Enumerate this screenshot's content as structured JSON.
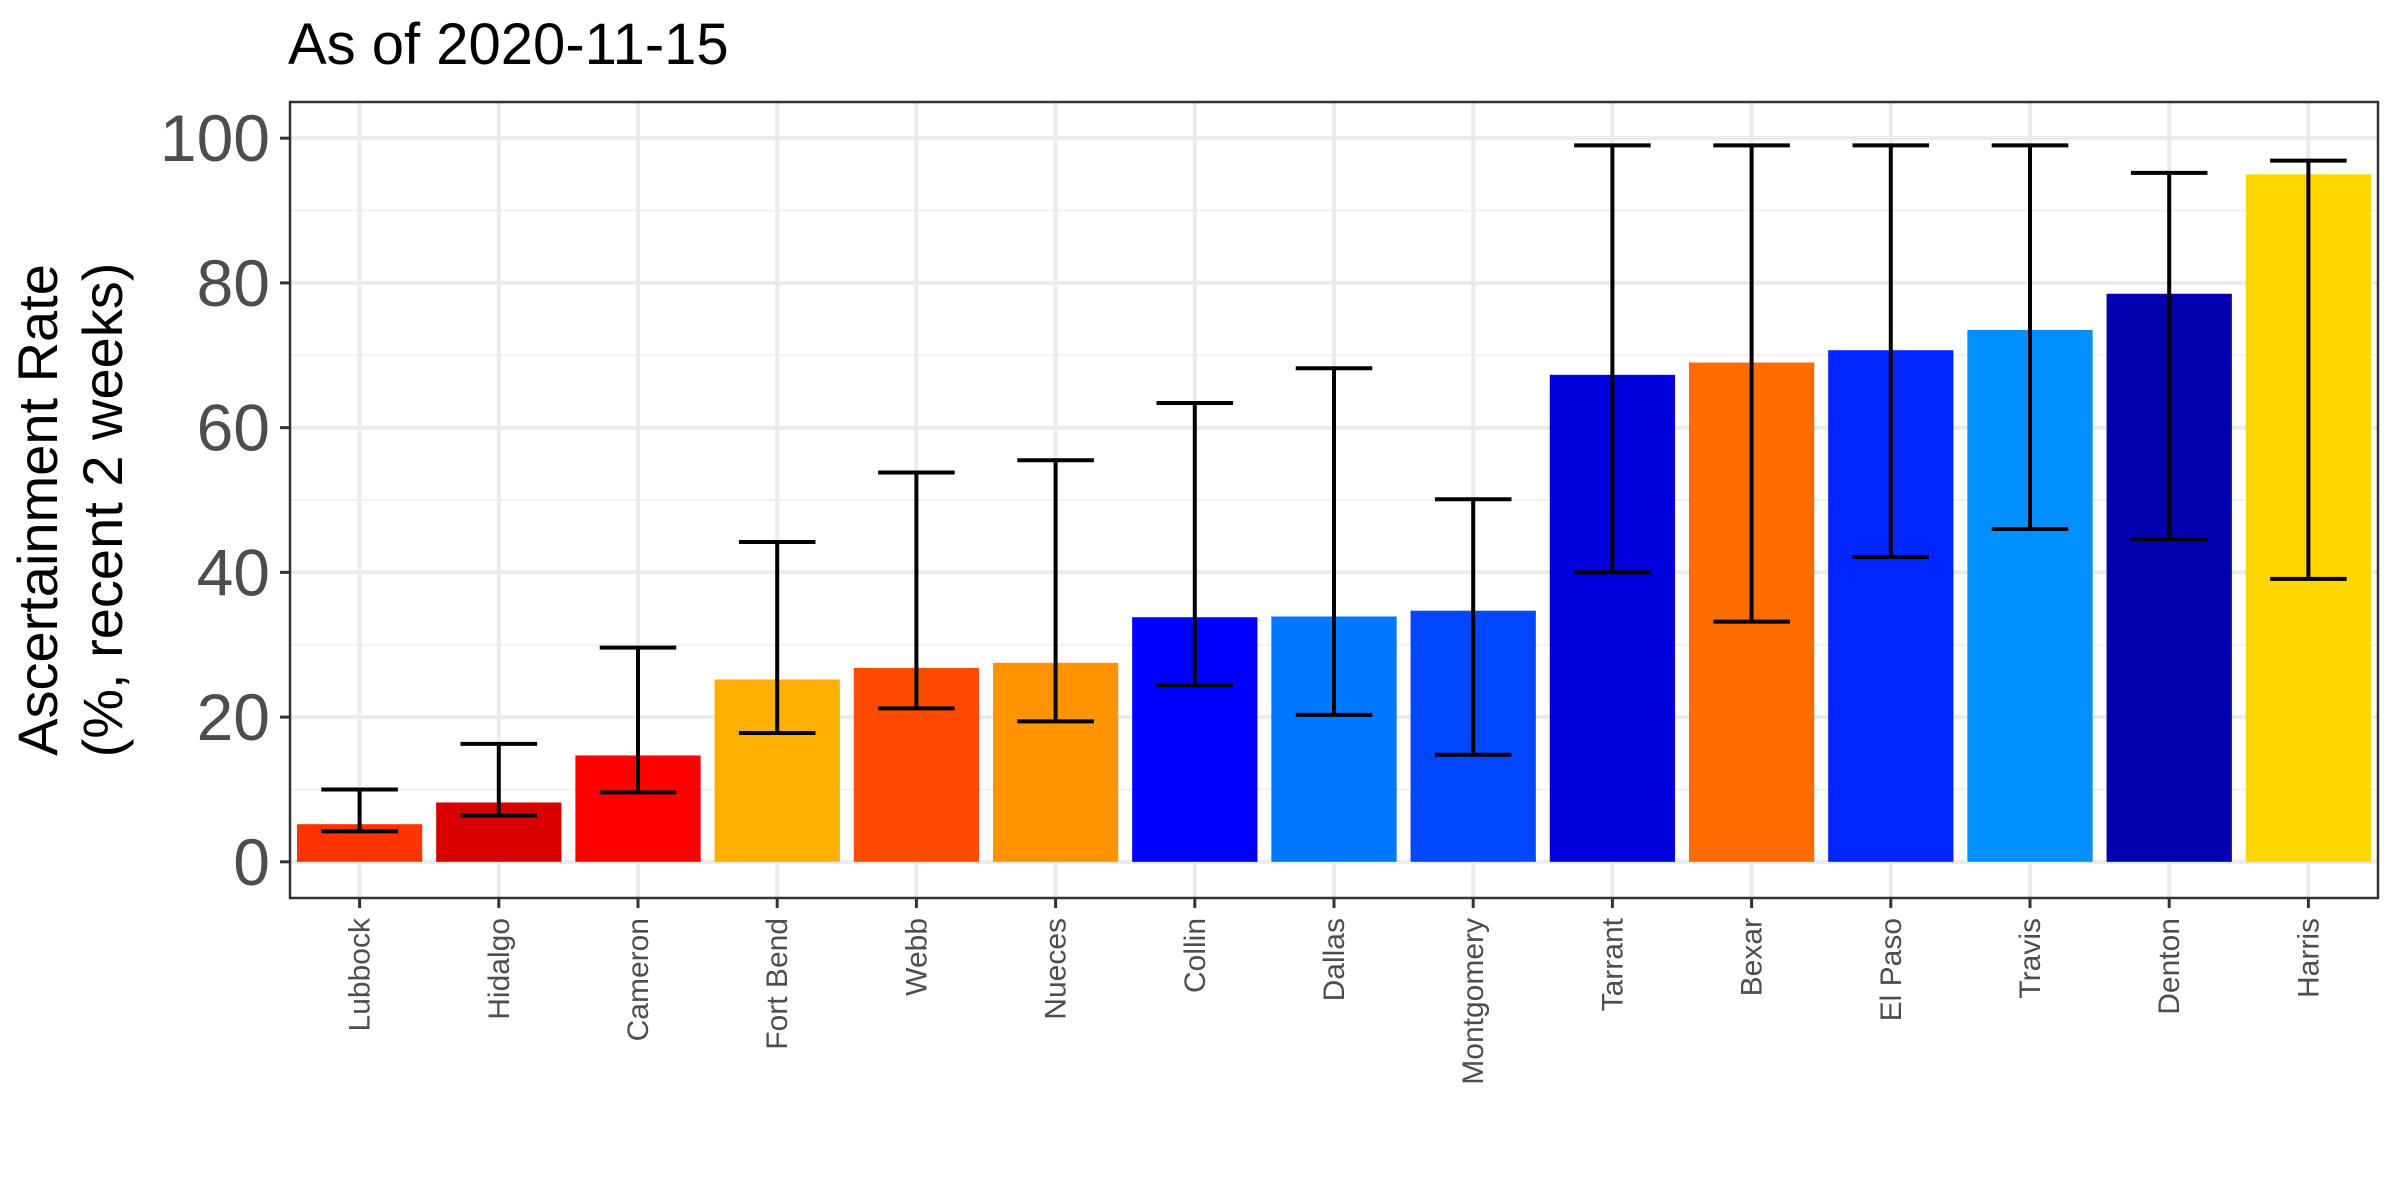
{
  "chart_data": {
    "type": "bar",
    "title": "As of 2020-11-15",
    "xlabel": "",
    "ylabel_line1": "Ascertainment Rate",
    "ylabel_line2": "(%, recent 2 weeks)",
    "ylim": [
      -5,
      105
    ],
    "yticks": [
      0,
      20,
      40,
      60,
      80,
      100
    ],
    "grid": true,
    "legend": "none",
    "categories": [
      "Lubbock",
      "Hidalgo",
      "Cameron",
      "Fort Bend",
      "Webb",
      "Nueces",
      "Collin",
      "Dallas",
      "Montgomery",
      "Tarrant",
      "Bexar",
      "El Paso",
      "Travis",
      "Denton",
      "Harris"
    ],
    "values": [
      5.2,
      8.2,
      14.7,
      25.2,
      26.8,
      27.5,
      33.8,
      33.9,
      34.7,
      67.3,
      69.0,
      70.7,
      73.5,
      78.5,
      95.0
    ],
    "error_low": [
      4.2,
      6.4,
      9.6,
      17.8,
      21.2,
      19.4,
      24.4,
      20.3,
      14.8,
      40.0,
      33.2,
      42.1,
      46.0,
      44.6,
      39.1
    ],
    "error_high": [
      10.0,
      16.3,
      29.6,
      44.2,
      53.8,
      55.5,
      63.4,
      68.2,
      50.1,
      99.0,
      99.0,
      99.0,
      99.0,
      95.2,
      96.9
    ],
    "colors": [
      "#ff3300",
      "#d90000",
      "#ff0000",
      "#ffb000",
      "#ff4a00",
      "#ff9400",
      "#0000ff",
      "#0077ff",
      "#0047ff",
      "#0000dd",
      "#ff6c00",
      "#0026ff",
      "#0090ff",
      "#0000b0",
      "#ffd700"
    ]
  }
}
